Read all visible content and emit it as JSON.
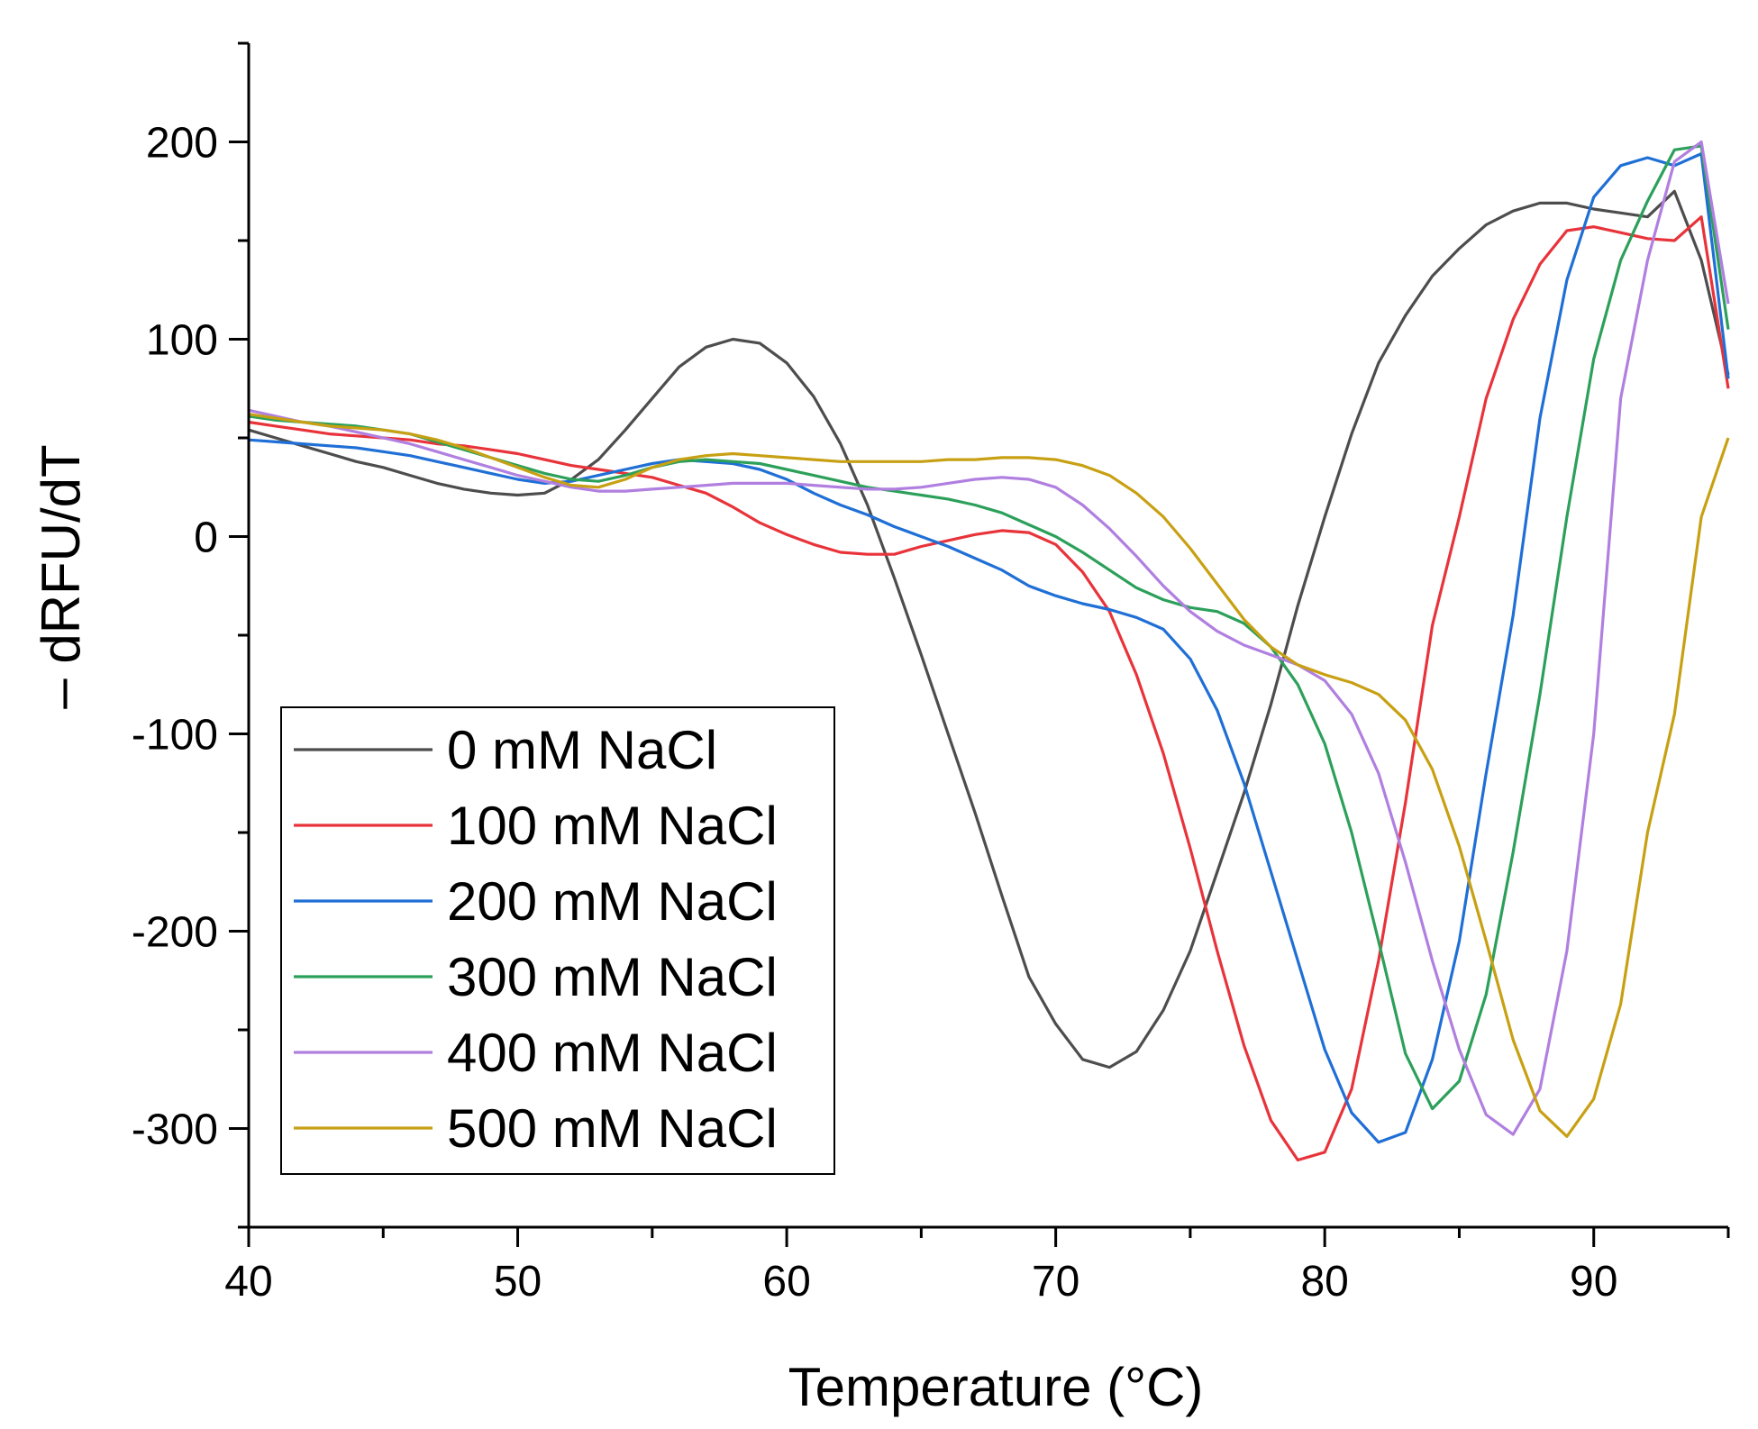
{
  "chart_data": {
    "type": "line",
    "title": "",
    "xlabel": "Temperature (°C)",
    "ylabel": "– dRFU/dT",
    "xlim": [
      40,
      95
    ],
    "ylim": [
      -350,
      250
    ],
    "x_ticks": [
      40,
      50,
      60,
      70,
      80,
      90
    ],
    "y_ticks": [
      -300,
      -200,
      -100,
      0,
      100,
      200
    ],
    "x_tick_labels": [
      "40",
      "50",
      "60",
      "70",
      "80",
      "90"
    ],
    "y_tick_labels": [
      "-300",
      "-200",
      "-100",
      "0",
      "100",
      "200"
    ],
    "grid": false,
    "legend_position": "bottom-left",
    "series": [
      {
        "name": "0 mM NaCl",
        "color": "#4d4d4d",
        "x": [
          40,
          41,
          42,
          43,
          44,
          45,
          46,
          47,
          48,
          49,
          50,
          51,
          52,
          53,
          54,
          55,
          56,
          57,
          58,
          59,
          60,
          61,
          62,
          63,
          64,
          65,
          66,
          67,
          68,
          69,
          70,
          71,
          72,
          73,
          74,
          75,
          76,
          77,
          78,
          79,
          80,
          81,
          82,
          83,
          84,
          85,
          86,
          87,
          88,
          89,
          90,
          91,
          92,
          93,
          94,
          95
        ],
        "y": [
          54,
          50,
          46,
          42,
          38,
          35,
          31,
          27,
          24,
          22,
          21,
          22,
          29,
          39,
          54,
          70,
          86,
          96,
          100,
          98,
          88,
          71,
          47,
          16,
          -21,
          -60,
          -100,
          -140,
          -182,
          -223,
          -247,
          -265,
          -269,
          -261,
          -240,
          -210,
          -170,
          -130,
          -85,
          -35,
          10,
          52,
          88,
          112,
          132,
          146,
          158,
          165,
          169,
          169,
          166,
          164,
          162,
          175,
          140,
          82
        ]
      },
      {
        "name": "100 mM NaCl",
        "color": "#e8333a",
        "x": [
          40,
          41,
          42,
          43,
          44,
          45,
          46,
          47,
          48,
          49,
          50,
          51,
          52,
          53,
          54,
          55,
          56,
          57,
          58,
          59,
          60,
          61,
          62,
          63,
          64,
          65,
          66,
          67,
          68,
          69,
          70,
          71,
          72,
          73,
          74,
          75,
          76,
          77,
          78,
          79,
          80,
          81,
          82,
          83,
          84,
          85,
          86,
          87,
          88,
          89,
          90,
          91,
          92,
          93,
          94,
          95
        ],
        "y": [
          58,
          56,
          54,
          52,
          51,
          50,
          49,
          47,
          46,
          44,
          42,
          39,
          36,
          34,
          32,
          30,
          26,
          22,
          15,
          7,
          1,
          -4,
          -8,
          -9,
          -9,
          -5,
          -2,
          1,
          3,
          2,
          -4,
          -18,
          -38,
          -70,
          -110,
          -158,
          -210,
          -258,
          -296,
          -316,
          -312,
          -280,
          -215,
          -135,
          -45,
          10,
          70,
          110,
          138,
          155,
          157,
          154,
          151,
          150,
          162,
          75
        ]
      },
      {
        "name": "200 mM NaCl",
        "color": "#1f6fd6",
        "x": [
          40,
          41,
          42,
          43,
          44,
          45,
          46,
          47,
          48,
          49,
          50,
          51,
          52,
          53,
          54,
          55,
          56,
          57,
          58,
          59,
          60,
          61,
          62,
          63,
          64,
          65,
          66,
          67,
          68,
          69,
          70,
          71,
          72,
          73,
          74,
          75,
          76,
          77,
          78,
          79,
          80,
          81,
          82,
          83,
          84,
          85,
          86,
          87,
          88,
          89,
          90,
          91,
          92,
          93,
          94,
          95
        ],
        "y": [
          49,
          48,
          47,
          46,
          45,
          43,
          41,
          38,
          35,
          32,
          29,
          27,
          28,
          31,
          34,
          37,
          39,
          38,
          37,
          34,
          29,
          22,
          16,
          11,
          5,
          0,
          -5,
          -11,
          -17,
          -25,
          -30,
          -34,
          -37,
          -41,
          -47,
          -62,
          -88,
          -125,
          -170,
          -215,
          -260,
          -292,
          -307,
          -302,
          -265,
          -205,
          -120,
          -40,
          60,
          130,
          172,
          188,
          192,
          188,
          194,
          80
        ]
      },
      {
        "name": "300 mM NaCl",
        "color": "#2ca05a",
        "x": [
          40,
          41,
          42,
          43,
          44,
          45,
          46,
          47,
          48,
          49,
          50,
          51,
          52,
          53,
          54,
          55,
          56,
          57,
          58,
          59,
          60,
          61,
          62,
          63,
          64,
          65,
          66,
          67,
          68,
          69,
          70,
          71,
          72,
          73,
          74,
          75,
          76,
          77,
          78,
          79,
          80,
          81,
          82,
          83,
          84,
          85,
          86,
          87,
          88,
          89,
          90,
          91,
          92,
          93,
          94,
          95
        ],
        "y": [
          61,
          59,
          58,
          57,
          56,
          54,
          52,
          48,
          44,
          40,
          36,
          32,
          29,
          28,
          31,
          35,
          38,
          39,
          38,
          37,
          34,
          31,
          28,
          25,
          23,
          21,
          19,
          16,
          12,
          6,
          0,
          -8,
          -17,
          -26,
          -32,
          -36,
          -38,
          -44,
          -56,
          -75,
          -105,
          -150,
          -205,
          -262,
          -290,
          -276,
          -232,
          -160,
          -80,
          10,
          90,
          140,
          170,
          196,
          198,
          105
        ]
      },
      {
        "name": "400 mM NaCl",
        "color": "#b07fe0",
        "x": [
          40,
          41,
          42,
          43,
          44,
          45,
          46,
          47,
          48,
          49,
          50,
          51,
          52,
          53,
          54,
          55,
          56,
          57,
          58,
          59,
          60,
          61,
          62,
          63,
          64,
          65,
          66,
          67,
          68,
          69,
          70,
          71,
          72,
          73,
          74,
          75,
          76,
          77,
          78,
          79,
          80,
          81,
          82,
          83,
          84,
          85,
          86,
          87,
          88,
          89,
          90,
          91,
          92,
          93,
          94,
          95
        ],
        "y": [
          64,
          61,
          58,
          56,
          53,
          50,
          47,
          43,
          39,
          35,
          31,
          28,
          25,
          23,
          23,
          24,
          25,
          26,
          27,
          27,
          27,
          26,
          25,
          24,
          24,
          25,
          27,
          29,
          30,
          29,
          25,
          16,
          4,
          -10,
          -25,
          -38,
          -48,
          -55,
          -60,
          -65,
          -73,
          -90,
          -120,
          -165,
          -215,
          -260,
          -293,
          -303,
          -280,
          -210,
          -100,
          70,
          140,
          190,
          200,
          118
        ]
      },
      {
        "name": "500 mM NaCl",
        "color": "#c8a013",
        "x": [
          40,
          41,
          42,
          43,
          44,
          45,
          46,
          47,
          48,
          49,
          50,
          51,
          52,
          53,
          54,
          55,
          56,
          57,
          58,
          59,
          60,
          61,
          62,
          63,
          64,
          65,
          66,
          67,
          68,
          69,
          70,
          71,
          72,
          73,
          74,
          75,
          76,
          77,
          78,
          79,
          80,
          81,
          82,
          83,
          84,
          85,
          86,
          87,
          88,
          89,
          90,
          91,
          92,
          93,
          94,
          95
        ],
        "y": [
          62,
          60,
          58,
          56,
          55,
          54,
          52,
          49,
          45,
          40,
          35,
          30,
          26,
          25,
          29,
          35,
          39,
          41,
          42,
          41,
          40,
          39,
          38,
          38,
          38,
          38,
          39,
          39,
          40,
          40,
          39,
          36,
          31,
          22,
          10,
          -6,
          -24,
          -42,
          -56,
          -65,
          -70,
          -74,
          -80,
          -93,
          -118,
          -157,
          -205,
          -255,
          -291,
          -304,
          -285,
          -237,
          -150,
          -90,
          10,
          50
        ]
      }
    ]
  }
}
